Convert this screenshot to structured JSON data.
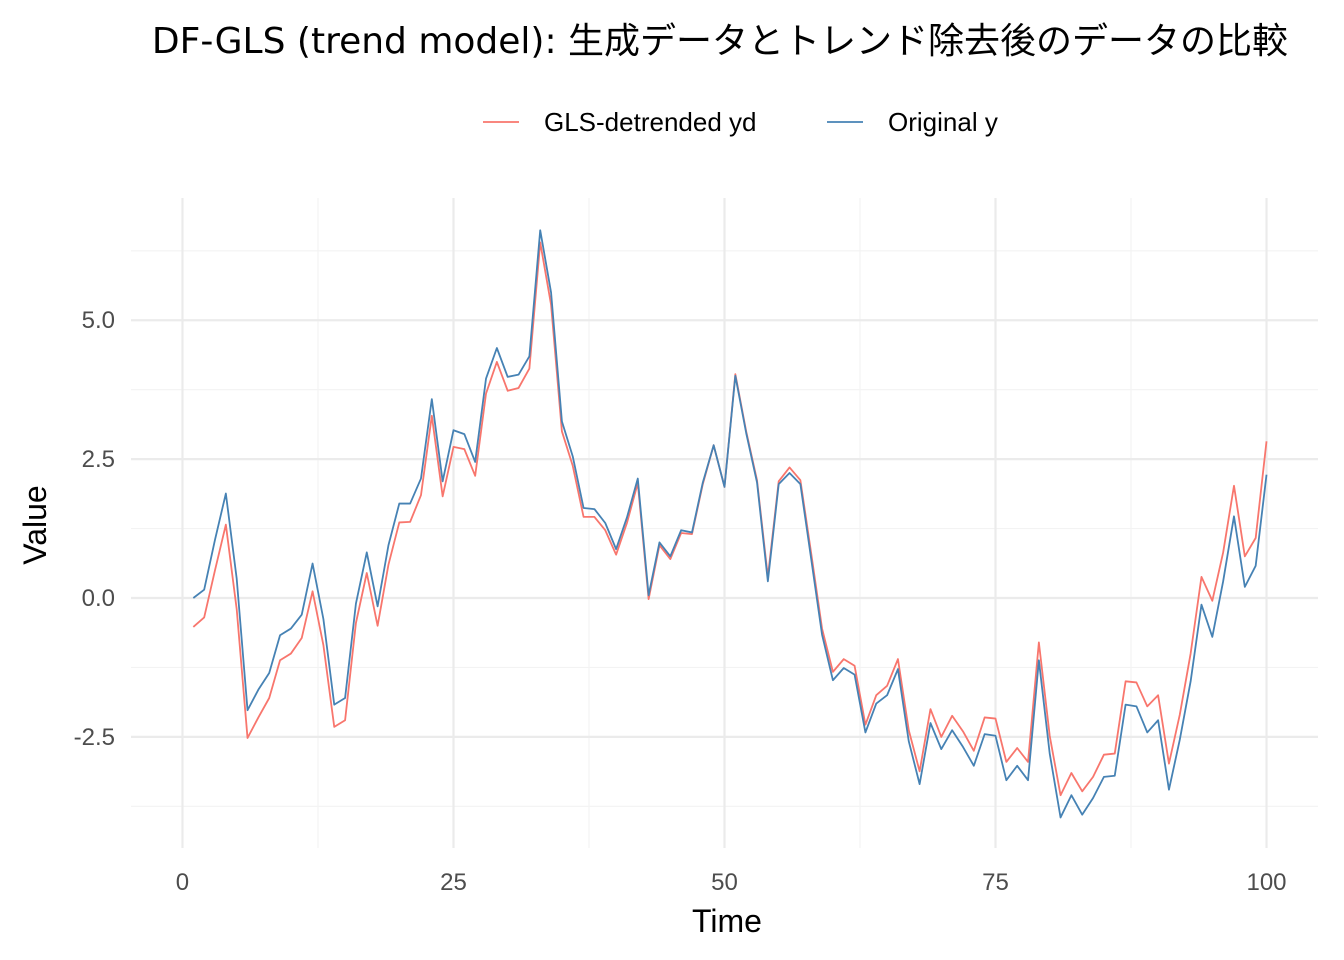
{
  "chart_data": {
    "type": "line",
    "title": "DF-GLS (trend model): 生成データとトレンド除去後のデータの比較",
    "xlabel": "Time",
    "ylabel": "Value",
    "xlim": [
      0,
      100
    ],
    "ylim": [
      -4.5,
      7.2
    ],
    "x_ticks": [
      0,
      25,
      50,
      75,
      100
    ],
    "x_tick_labels": [
      "0",
      "25",
      "50",
      "75",
      "100"
    ],
    "y_ticks": [
      -2.5,
      0,
      2.5,
      5
    ],
    "y_tick_labels": [
      "-2.5",
      "0.0",
      "2.5",
      "5.0"
    ],
    "grid": true,
    "legend_position": "top",
    "x": [
      1,
      2,
      3,
      4,
      5,
      6,
      7,
      8,
      9,
      10,
      11,
      12,
      13,
      14,
      15,
      16,
      17,
      18,
      19,
      20,
      21,
      22,
      23,
      24,
      25,
      26,
      27,
      28,
      29,
      30,
      31,
      32,
      33,
      34,
      35,
      36,
      37,
      38,
      39,
      40,
      41,
      42,
      43,
      44,
      45,
      46,
      47,
      48,
      49,
      50,
      51,
      52,
      53,
      54,
      55,
      56,
      57,
      58,
      59,
      60,
      61,
      62,
      63,
      64,
      65,
      66,
      67,
      68,
      69,
      70,
      71,
      72,
      73,
      74,
      75,
      76,
      77,
      78,
      79,
      80,
      81,
      82,
      83,
      84,
      85,
      86,
      87,
      88,
      89,
      90,
      91,
      92,
      93,
      94,
      95,
      96,
      97,
      98,
      99,
      100
    ],
    "series": [
      {
        "name": "GLS-detrended yd",
        "color": "#F8766D",
        "values": [
          -0.52,
          -0.35,
          0.5,
          1.32,
          -0.2,
          -2.52,
          -2.15,
          -1.8,
          -1.12,
          -1.0,
          -0.72,
          0.12,
          -0.85,
          -2.32,
          -2.2,
          -0.45,
          0.45,
          -0.5,
          0.6,
          1.36,
          1.37,
          1.85,
          3.28,
          1.83,
          2.72,
          2.68,
          2.2,
          3.68,
          4.25,
          3.73,
          3.78,
          4.13,
          6.4,
          5.28,
          3.0,
          2.38,
          1.46,
          1.46,
          1.22,
          0.78,
          1.35,
          2.07,
          -0.02,
          0.95,
          0.7,
          1.17,
          1.15,
          2.05,
          2.75,
          2.0,
          4.03,
          3.0,
          2.12,
          0.38,
          2.1,
          2.35,
          2.12,
          0.8,
          -0.55,
          -1.33,
          -1.1,
          -1.22,
          -2.28,
          -1.75,
          -1.58,
          -1.1,
          -2.38,
          -3.12,
          -2.0,
          -2.5,
          -2.12,
          -2.4,
          -2.75,
          -2.15,
          -2.17,
          -2.95,
          -2.7,
          -2.95,
          -0.8,
          -2.48,
          -3.55,
          -3.15,
          -3.48,
          -3.22,
          -2.82,
          -2.8,
          -1.5,
          -1.52,
          -1.95,
          -1.75,
          -2.98,
          -2.1,
          -1.0,
          0.38,
          -0.05,
          0.82,
          2.02,
          0.75,
          1.08,
          2.82
        ]
      },
      {
        "name": "Original y",
        "color": "#4682B4",
        "values": [
          0.0,
          0.15,
          1.05,
          1.88,
          0.35,
          -2.02,
          -1.65,
          -1.35,
          -0.67,
          -0.55,
          -0.3,
          0.62,
          -0.38,
          -1.92,
          -1.8,
          -0.1,
          0.82,
          -0.15,
          0.95,
          1.7,
          1.7,
          2.15,
          3.58,
          2.1,
          3.02,
          2.95,
          2.45,
          3.95,
          4.5,
          3.98,
          4.02,
          4.35,
          6.62,
          5.5,
          3.18,
          2.55,
          1.62,
          1.6,
          1.35,
          0.88,
          1.45,
          2.15,
          0.05,
          1.0,
          0.75,
          1.22,
          1.18,
          2.08,
          2.75,
          2.0,
          4.0,
          2.97,
          2.08,
          0.3,
          2.05,
          2.25,
          2.05,
          0.7,
          -0.66,
          -1.48,
          -1.26,
          -1.38,
          -2.42,
          -1.9,
          -1.75,
          -1.28,
          -2.58,
          -3.35,
          -2.25,
          -2.72,
          -2.38,
          -2.68,
          -3.02,
          -2.45,
          -2.48,
          -3.28,
          -3.02,
          -3.28,
          -1.12,
          -2.8,
          -3.95,
          -3.55,
          -3.9,
          -3.6,
          -3.22,
          -3.2,
          -1.92,
          -1.95,
          -2.42,
          -2.2,
          -3.45,
          -2.55,
          -1.5,
          -0.12,
          -0.7,
          0.3,
          1.47,
          0.2,
          0.58,
          2.22
        ]
      }
    ]
  }
}
